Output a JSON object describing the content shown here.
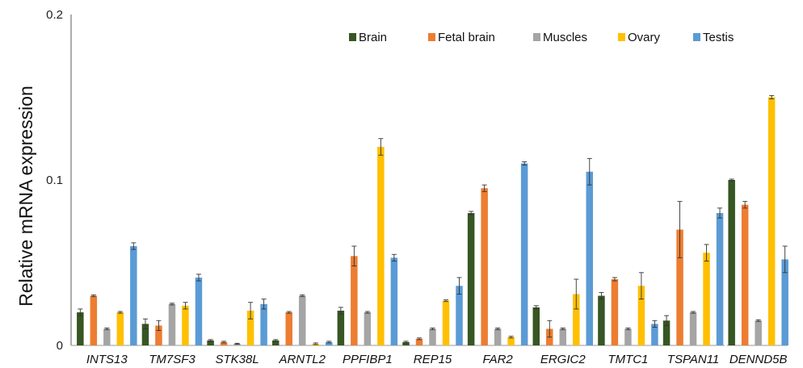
{
  "chart_data": {
    "type": "bar",
    "title": "",
    "xlabel": "",
    "ylabel": "Relative  mRNA expression",
    "ylim": [
      0,
      0.2
    ],
    "yticks": [
      "0",
      "0.1",
      "0.2"
    ],
    "ytick_values": [
      0,
      0.1,
      0.2
    ],
    "grid": false,
    "legend_position": "top-right",
    "categories": [
      "INTS13",
      "TM7SF3",
      "STK38L",
      "ARNTL2",
      "PPFIBP1",
      "REP15",
      "FAR2",
      "ERGIC2",
      "TMTC1",
      "TSPAN11",
      "DENND5B"
    ],
    "series": [
      {
        "name": "Brain",
        "color": "#375623",
        "values": [
          0.02,
          0.013,
          0.003,
          0.003,
          0.021,
          0.002,
          0.08,
          0.023,
          0.03,
          0.015,
          0.1
        ],
        "errors": [
          0.002,
          0.003,
          0.0005,
          0.0005,
          0.002,
          0.0005,
          0.001,
          0.001,
          0.002,
          0.003,
          0.0005
        ]
      },
      {
        "name": "Fetal brain",
        "color": "#ED7D31",
        "values": [
          0.03,
          0.012,
          0.002,
          0.02,
          0.054,
          0.004,
          0.095,
          0.01,
          0.04,
          0.07,
          0.085
        ],
        "errors": [
          0.0005,
          0.003,
          0.0005,
          0.0005,
          0.006,
          0.0005,
          0.002,
          0.005,
          0.001,
          0.017,
          0.002
        ]
      },
      {
        "name": "Muscles",
        "color": "#A5A5A5",
        "values": [
          0.01,
          0.025,
          0.001,
          0.03,
          0.02,
          0.01,
          0.01,
          0.01,
          0.01,
          0.02,
          0.015
        ],
        "errors": [
          0.0005,
          0.0005,
          0.0003,
          0.0005,
          0.0005,
          0.0005,
          0.0005,
          0.0005,
          0.0005,
          0.0005,
          0.0005
        ]
      },
      {
        "name": "Ovary",
        "color": "#FFC000",
        "values": [
          0.02,
          0.024,
          0.021,
          0.001,
          0.12,
          0.027,
          0.005,
          0.031,
          0.036,
          0.056,
          0.15
        ],
        "errors": [
          0.0005,
          0.002,
          0.005,
          0.0005,
          0.005,
          0.0005,
          0.0005,
          0.009,
          0.008,
          0.005,
          0.001
        ]
      },
      {
        "name": "Testis",
        "color": "#5B9BD5",
        "values": [
          0.06,
          0.041,
          0.025,
          0.002,
          0.053,
          0.036,
          0.11,
          0.105,
          0.013,
          0.08,
          0.052
        ],
        "errors": [
          0.002,
          0.002,
          0.003,
          0.0005,
          0.002,
          0.005,
          0.001,
          0.008,
          0.002,
          0.003,
          0.008
        ]
      }
    ]
  }
}
